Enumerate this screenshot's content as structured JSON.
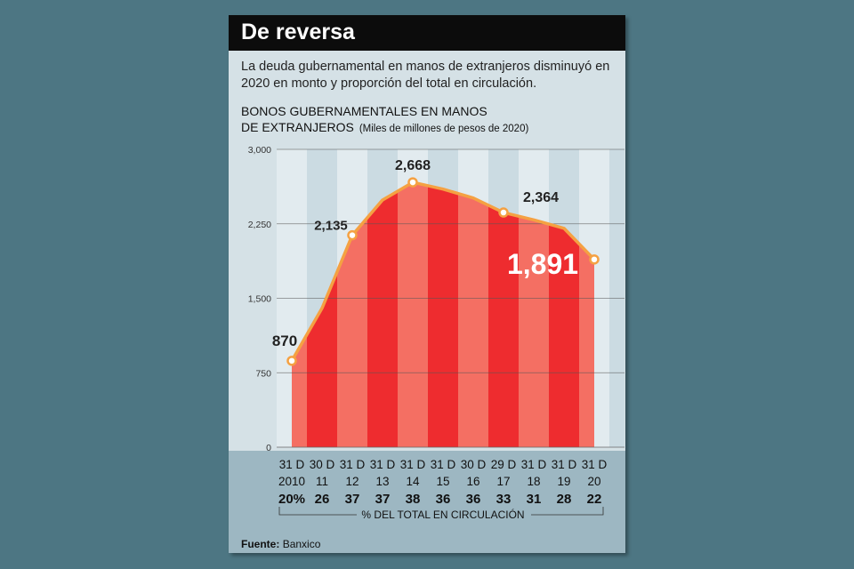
{
  "title": "De reversa",
  "subtitle": "La deuda gubernamental en manos de extranjeros disminuyó en 2020 en monto y proporción del total en circulación.",
  "source_label": "Fuente:",
  "source": "Banxico",
  "colors": {
    "page_bg": "#4d7683",
    "band_dark": "#ee2c2f",
    "band_light": "#f46f63",
    "line": "#f5a142",
    "highlight": "#ffffff"
  },
  "chart_data": {
    "type": "area",
    "title_line1": "BONOS GUBERNAMENTALES EN MANOS",
    "title_line2": "DE EXTRANJEROS",
    "unit": "(Miles de millones de pesos de 2020)",
    "ylim": [
      0,
      3000
    ],
    "yticks": [
      "0",
      "750",
      "1,500",
      "2,250",
      "3,000"
    ],
    "ytick_values": [
      0,
      750,
      1500,
      2250,
      3000
    ],
    "grid": true,
    "dates_day": [
      "31 D",
      "30 D",
      "31 D",
      "31 D",
      "31 D",
      "31 D",
      "30 D",
      "29 D",
      "31 D",
      "31 D",
      "31 D"
    ],
    "dates_year": [
      "2010",
      "11",
      "12",
      "13",
      "14",
      "15",
      "16",
      "17",
      "18",
      "19",
      "20"
    ],
    "values": [
      870,
      1400,
      2135,
      2490,
      2668,
      2600,
      2510,
      2364,
      2290,
      2205,
      1891
    ],
    "labeled_points": [
      {
        "index": 0,
        "label": "870"
      },
      {
        "index": 2,
        "label": "2,135"
      },
      {
        "index": 4,
        "label": "2,668"
      },
      {
        "index": 7,
        "label": "2,364"
      },
      {
        "index": 10,
        "label": "1,891"
      }
    ],
    "percent_of_total": [
      "20%",
      "26",
      "37",
      "37",
      "38",
      "36",
      "36",
      "33",
      "31",
      "28",
      "22"
    ],
    "percent_label": "% DEL TOTAL EN CIRCULACIÓN"
  }
}
